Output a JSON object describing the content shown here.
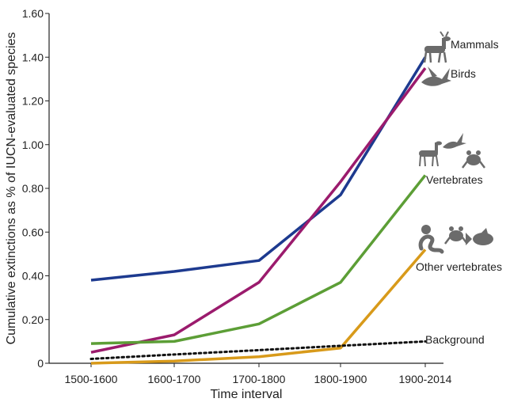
{
  "chart_data": {
    "type": "line",
    "title": "",
    "xlabel": "Time interval",
    "ylabel": "Cumulative extinctions as % of IUCN-evaluated species",
    "categories": [
      "1500-1600",
      "1600-1700",
      "1700-1800",
      "1800-1900",
      "1900-2014"
    ],
    "ylim": [
      0,
      1.6
    ],
    "yticks": [
      "0",
      "0.20",
      "0.40",
      "0.60",
      "0.80",
      "1.00",
      "1.20",
      "1.40",
      "1.60"
    ],
    "grid": false,
    "series": [
      {
        "name": "Mammals",
        "color": "#1d3a8f",
        "style": "solid",
        "icon": "deer-icon",
        "values": [
          0.38,
          0.42,
          0.47,
          0.77,
          1.4
        ]
      },
      {
        "name": "Birds",
        "color": "#9b1b6d",
        "style": "solid",
        "icon": "bird-icon",
        "values": [
          0.05,
          0.13,
          0.37,
          0.83,
          1.35
        ]
      },
      {
        "name": "Vertebrates",
        "color": "#5c9e36",
        "style": "solid",
        "icon": "vertebrates-icon",
        "values": [
          0.09,
          0.1,
          0.18,
          0.37,
          0.86
        ]
      },
      {
        "name": "Other vertebrates",
        "color": "#d89a1a",
        "style": "solid",
        "icon": "other-vertebrates-icon",
        "values": [
          0.0,
          0.01,
          0.03,
          0.07,
          0.52
        ]
      },
      {
        "name": "Background",
        "color": "#111111",
        "style": "dotted",
        "icon": "",
        "values": [
          0.02,
          0.04,
          0.06,
          0.08,
          0.1
        ]
      }
    ]
  }
}
